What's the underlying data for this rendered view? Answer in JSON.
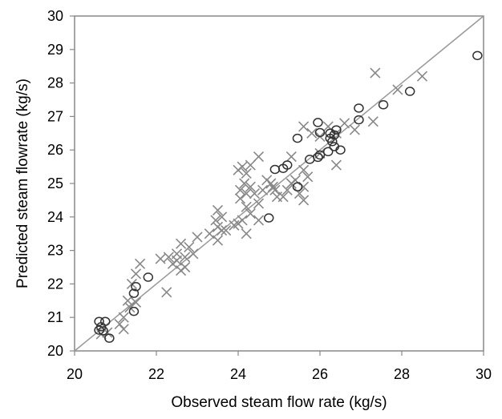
{
  "chart_data": {
    "type": "scatter",
    "title": "",
    "xlabel": "Observed steam flow rate (kg/s)",
    "ylabel": "Predicted steam flowrate (kg/s)",
    "xlim": [
      20,
      30
    ],
    "ylim": [
      20,
      30
    ],
    "xticks": [
      "20",
      "22",
      "24",
      "26",
      "28",
      "30"
    ],
    "yticks": [
      "20",
      "21",
      "22",
      "23",
      "24",
      "25",
      "26",
      "27",
      "28",
      "29",
      "30"
    ],
    "grid": false,
    "reference_line": {
      "from": [
        20,
        20
      ],
      "to": [
        30,
        30
      ],
      "color": "#999999"
    },
    "series": [
      {
        "name": "circles",
        "marker": "circle",
        "color": "#333333",
        "points": [
          [
            29.85,
            28.82
          ],
          [
            28.2,
            27.75
          ],
          [
            27.55,
            27.35
          ],
          [
            26.95,
            27.25
          ],
          [
            26.95,
            26.9
          ],
          [
            25.95,
            26.82
          ],
          [
            26.0,
            26.52
          ],
          [
            26.25,
            26.5
          ],
          [
            26.35,
            26.45
          ],
          [
            26.4,
            26.6
          ],
          [
            26.25,
            26.35
          ],
          [
            25.45,
            26.35
          ],
          [
            26.3,
            26.25
          ],
          [
            26.35,
            26.1
          ],
          [
            26.5,
            26.0
          ],
          [
            26.2,
            25.95
          ],
          [
            26.0,
            25.85
          ],
          [
            25.95,
            25.78
          ],
          [
            25.75,
            25.72
          ],
          [
            25.2,
            25.55
          ],
          [
            25.1,
            25.45
          ],
          [
            24.9,
            25.42
          ],
          [
            25.45,
            24.9
          ],
          [
            24.75,
            23.97
          ],
          [
            21.8,
            22.2
          ],
          [
            21.5,
            21.92
          ],
          [
            21.45,
            21.72
          ],
          [
            21.45,
            21.18
          ],
          [
            20.75,
            20.88
          ],
          [
            20.6,
            20.88
          ],
          [
            20.65,
            20.72
          ],
          [
            20.6,
            20.62
          ],
          [
            20.7,
            20.6
          ],
          [
            20.85,
            20.38
          ]
        ]
      },
      {
        "name": "crosses",
        "marker": "x",
        "color": "#888888",
        "points": [
          [
            28.5,
            28.2
          ],
          [
            27.35,
            28.3
          ],
          [
            27.9,
            27.8
          ],
          [
            27.3,
            26.85
          ],
          [
            26.6,
            26.8
          ],
          [
            26.85,
            26.6
          ],
          [
            26.0,
            26.4
          ],
          [
            26.2,
            26.7
          ],
          [
            26.4,
            26.5
          ],
          [
            25.8,
            26.5
          ],
          [
            25.6,
            26.7
          ],
          [
            25.3,
            25.8
          ],
          [
            26.0,
            25.9
          ],
          [
            26.4,
            25.55
          ],
          [
            25.6,
            25.4
          ],
          [
            25.7,
            25.2
          ],
          [
            25.4,
            25.1
          ],
          [
            25.3,
            25.0
          ],
          [
            25.6,
            24.9
          ],
          [
            25.2,
            24.8
          ],
          [
            25.5,
            24.7
          ],
          [
            25.6,
            24.5
          ],
          [
            25.1,
            24.6
          ],
          [
            24.9,
            24.8
          ],
          [
            24.8,
            25.0
          ],
          [
            24.95,
            24.6
          ],
          [
            24.85,
            24.9
          ],
          [
            24.5,
            25.8
          ],
          [
            24.3,
            25.55
          ],
          [
            24.1,
            25.5
          ],
          [
            24.2,
            25.3
          ],
          [
            24.0,
            25.4
          ],
          [
            24.15,
            25.0
          ],
          [
            24.05,
            24.8
          ],
          [
            24.2,
            24.7
          ],
          [
            24.3,
            24.9
          ],
          [
            24.05,
            24.55
          ],
          [
            24.2,
            24.3
          ],
          [
            24.5,
            24.4
          ],
          [
            24.6,
            24.8
          ],
          [
            24.4,
            24.7
          ],
          [
            24.7,
            25.1
          ],
          [
            24.3,
            24.1
          ],
          [
            24.1,
            23.9
          ],
          [
            24.0,
            23.8
          ],
          [
            24.2,
            23.5
          ],
          [
            24.5,
            23.9
          ],
          [
            23.9,
            23.75
          ],
          [
            23.7,
            23.6
          ],
          [
            23.5,
            24.2
          ],
          [
            23.6,
            24.0
          ],
          [
            23.45,
            23.9
          ],
          [
            23.5,
            23.7
          ],
          [
            23.3,
            23.5
          ],
          [
            23.5,
            23.3
          ],
          [
            23.6,
            23.6
          ],
          [
            23.0,
            23.4
          ],
          [
            22.8,
            23.1
          ],
          [
            22.9,
            22.9
          ],
          [
            22.7,
            22.8
          ],
          [
            22.6,
            23.2
          ],
          [
            22.5,
            22.7
          ],
          [
            22.7,
            22.5
          ],
          [
            22.4,
            22.6
          ],
          [
            22.5,
            22.9
          ],
          [
            22.6,
            22.4
          ],
          [
            22.3,
            22.8
          ],
          [
            22.1,
            22.75
          ],
          [
            22.25,
            21.75
          ],
          [
            21.6,
            22.6
          ],
          [
            21.5,
            22.3
          ],
          [
            21.4,
            22.0
          ],
          [
            21.3,
            21.5
          ],
          [
            21.35,
            21.3
          ],
          [
            21.5,
            21.45
          ],
          [
            21.2,
            21.0
          ],
          [
            21.1,
            20.8
          ],
          [
            21.2,
            20.65
          ],
          [
            20.8,
            20.55
          ],
          [
            20.65,
            20.5
          ]
        ]
      }
    ]
  }
}
